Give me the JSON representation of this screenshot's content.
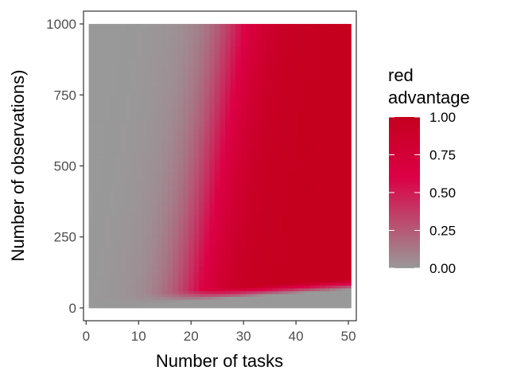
{
  "chart_data": {
    "type": "heatmap",
    "title": "",
    "xlabel": "Number of tasks",
    "ylabel": "Number of observations)",
    "xlim": [
      -0.5,
      51.5
    ],
    "ylim": [
      -45,
      1045
    ],
    "x_range": [
      1,
      50
    ],
    "y_range": [
      0,
      1000
    ],
    "x_ticks": [
      0,
      10,
      20,
      30,
      40,
      50
    ],
    "y_ticks": [
      0,
      250,
      500,
      750,
      1000
    ],
    "x_tick_labels": [
      "0",
      "10",
      "20",
      "30",
      "40",
      "50"
    ],
    "y_tick_labels": [
      "0",
      "250",
      "500",
      "750",
      "1000"
    ],
    "grid": false,
    "fill_variable": "red advantage",
    "legend": {
      "title_lines": [
        "red",
        "advantage"
      ],
      "placement": "right",
      "breaks": [
        0.0,
        0.25,
        0.5,
        0.75,
        1.0
      ],
      "break_labels": [
        "0.00",
        "0.25",
        "0.50",
        "0.75",
        "1.00"
      ],
      "low_color": "#999999",
      "high_color": "#C4001E"
    },
    "pattern_description_values": {
      "note_free": true
    }
  }
}
